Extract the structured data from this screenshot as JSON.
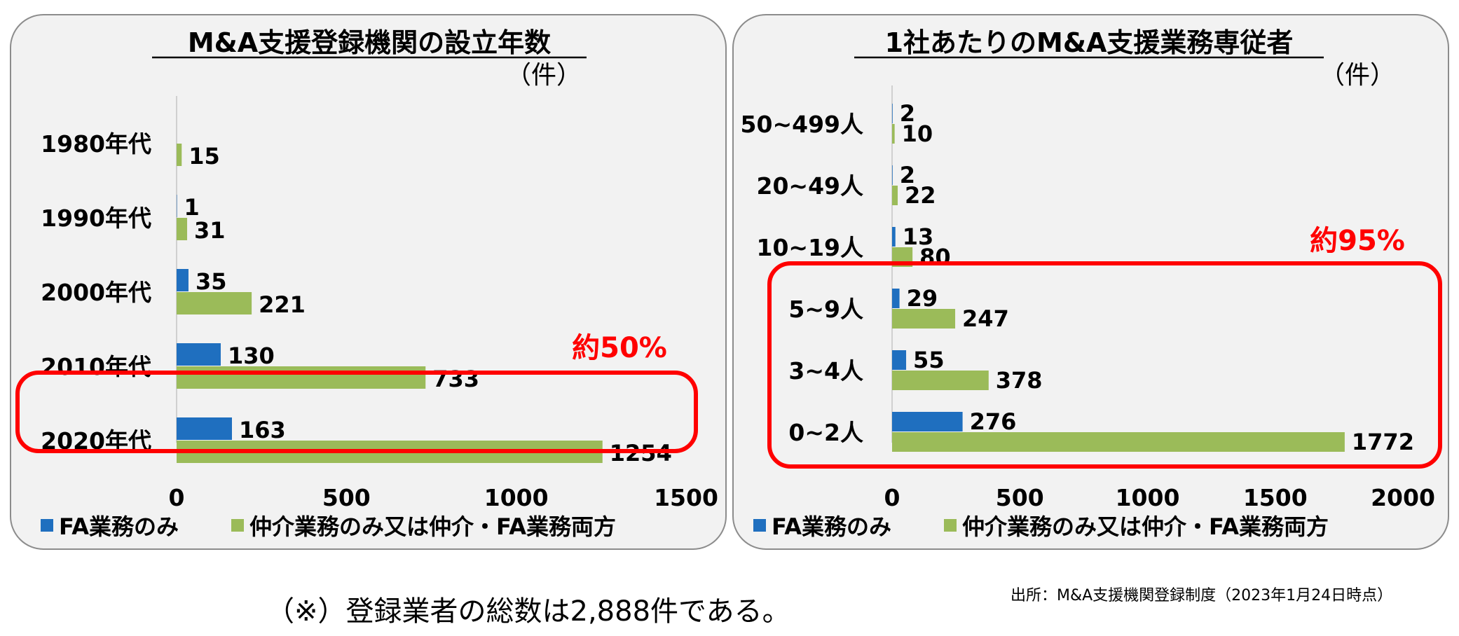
{
  "footnote": "（※）登録業者の総数は2,888件である。",
  "source": "出所：M&A支援機関登録制度（2023年1月24日時点）",
  "colors": {
    "fa": "#1f6fbf",
    "both": "#9bbb59",
    "highlight": "#ff0000",
    "panel_bg": "#f2f2f2"
  },
  "chart_data": [
    {
      "type": "bar",
      "orientation": "horizontal",
      "title": "M&A支援登録機関の設立年数",
      "unit": "（件）",
      "categories": [
        "1980年代",
        "1990年代",
        "2000年代",
        "2010年代",
        "2020年代"
      ],
      "series": [
        {
          "name": "FA業務のみ",
          "values": [
            0,
            1,
            35,
            130,
            163
          ],
          "labels": [
            "",
            "1",
            "35",
            "130",
            "163"
          ]
        },
        {
          "name": "仲介業務のみ又は仲介・FA業務両方",
          "values": [
            15,
            31,
            221,
            733,
            1254
          ],
          "labels": [
            "15",
            "31",
            "221",
            "733",
            "1254"
          ]
        }
      ],
      "xlim": [
        0,
        1500
      ],
      "ticks": [
        "0",
        "500",
        "1000",
        "1500"
      ],
      "legend_position": "bottom",
      "annotation": {
        "text": "約50%",
        "highlight_categories": [
          "2020年代"
        ]
      }
    },
    {
      "type": "bar",
      "orientation": "horizontal",
      "title": "1社あたりのM&A支援業務専従者",
      "unit": "（件）",
      "categories": [
        "50~499人",
        "20~49人",
        "10~19人",
        "5~9人",
        "3~4人",
        "0~2人"
      ],
      "series": [
        {
          "name": "FA業務のみ",
          "values": [
            2,
            2,
            13,
            29,
            55,
            276
          ],
          "labels": [
            "2",
            "2",
            "13",
            "29",
            "55",
            "276"
          ]
        },
        {
          "name": "仲介業務のみ又は仲介・FA業務両方",
          "values": [
            10,
            22,
            80,
            247,
            378,
            1772
          ],
          "labels": [
            "10",
            "22",
            "80",
            "247",
            "378",
            "1772"
          ]
        }
      ],
      "xlim": [
        0,
        2000
      ],
      "ticks": [
        "0",
        "500",
        "1000",
        "1500",
        "2000"
      ],
      "legend_position": "bottom",
      "annotation": {
        "text": "約95%",
        "highlight_categories": [
          "5~9人",
          "3~4人",
          "0~2人"
        ]
      }
    }
  ]
}
